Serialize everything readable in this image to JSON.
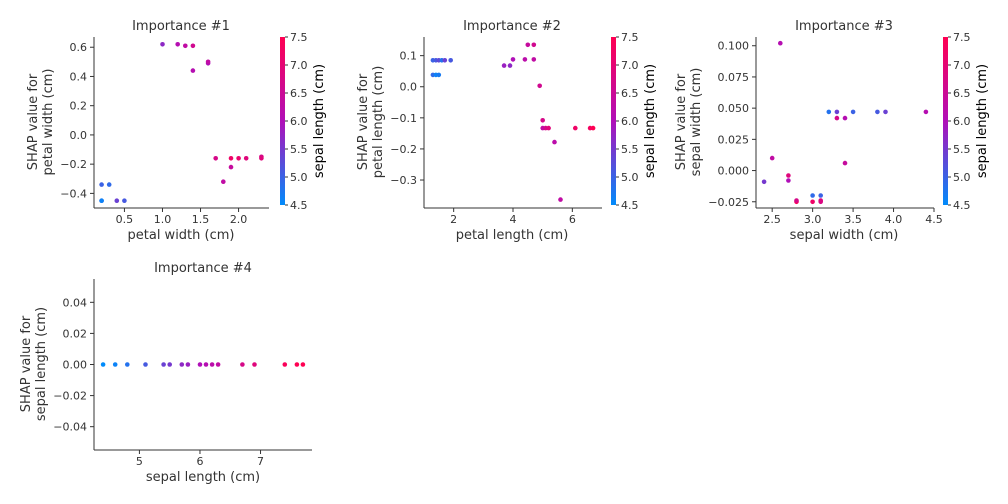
{
  "chart_data": [
    {
      "type": "scatter",
      "title": "Importance #1",
      "xlabel": "petal width (cm)",
      "ylabel_lines": [
        "SHAP value for",
        "petal width (cm)"
      ],
      "colorbar_label": "sepal length (cm)",
      "xlim": [
        0.1,
        2.4
      ],
      "ylim": [
        -0.5,
        0.67
      ],
      "xticks": [
        0.5,
        1.0,
        1.5,
        2.0
      ],
      "xtick_labels": [
        "0.5",
        "1.0",
        "1.5",
        "2.0"
      ],
      "yticks": [
        -0.4,
        -0.2,
        0.0,
        0.2,
        0.4,
        0.6
      ],
      "ytick_labels": [
        "−0.4",
        "−0.2",
        "0.0",
        "0.2",
        "0.4",
        "0.6"
      ],
      "points": [
        {
          "x": 0.2,
          "y": -0.34,
          "c": 5.0
        },
        {
          "x": 0.3,
          "y": -0.34,
          "c": 4.9
        },
        {
          "x": 0.2,
          "y": -0.45,
          "c": 5.1
        },
        {
          "x": 0.2,
          "y": -0.45,
          "c": 4.6
        },
        {
          "x": 0.4,
          "y": -0.45,
          "c": 5.4
        },
        {
          "x": 0.5,
          "y": -0.45,
          "c": 5.1
        },
        {
          "x": 1.0,
          "y": 0.62,
          "c": 5.7
        },
        {
          "x": 1.2,
          "y": 0.62,
          "c": 6.1
        },
        {
          "x": 1.3,
          "y": 0.61,
          "c": 6.3
        },
        {
          "x": 1.4,
          "y": 0.61,
          "c": 6.6
        },
        {
          "x": 1.4,
          "y": 0.44,
          "c": 6.1
        },
        {
          "x": 1.6,
          "y": 0.49,
          "c": 6.0
        },
        {
          "x": 1.6,
          "y": 0.5,
          "c": 6.3
        },
        {
          "x": 1.7,
          "y": -0.16,
          "c": 6.7
        },
        {
          "x": 1.8,
          "y": -0.32,
          "c": 6.3
        },
        {
          "x": 1.9,
          "y": -0.22,
          "c": 6.4
        },
        {
          "x": 1.9,
          "y": -0.16,
          "c": 7.2
        },
        {
          "x": 2.0,
          "y": -0.16,
          "c": 7.1
        },
        {
          "x": 2.1,
          "y": -0.16,
          "c": 6.9
        },
        {
          "x": 2.3,
          "y": -0.15,
          "c": 6.7
        },
        {
          "x": 2.3,
          "y": -0.16,
          "c": 6.9
        }
      ],
      "colorbar": {
        "min": 4.5,
        "max": 7.5,
        "ticks": [
          4.5,
          5.0,
          5.5,
          6.0,
          6.5,
          7.0,
          7.5
        ],
        "tick_labels": [
          "4.5",
          "5.0",
          "5.5",
          "6.0",
          "6.5",
          "7.0",
          "7.5"
        ]
      }
    },
    {
      "type": "scatter",
      "title": "Importance #2",
      "xlabel": "petal length (cm)",
      "ylabel_lines": [
        "SHAP value for",
        "petal length (cm)"
      ],
      "colorbar_label": "sepal length (cm)",
      "xlim": [
        1.0,
        7.0
      ],
      "ylim": [
        -0.39,
        0.16
      ],
      "xticks": [
        2,
        4,
        6
      ],
      "xtick_labels": [
        "2",
        "4",
        "6"
      ],
      "yticks": [
        0.1,
        0.0,
        -0.1,
        -0.2,
        -0.3
      ],
      "ytick_labels": [
        "0.1",
        "0.0",
        "−0.1",
        "−0.2",
        "−0.3"
      ],
      "points": [
        {
          "x": 1.3,
          "y": 0.085,
          "c": 5.0
        },
        {
          "x": 1.4,
          "y": 0.085,
          "c": 5.1
        },
        {
          "x": 1.5,
          "y": 0.085,
          "c": 5.3
        },
        {
          "x": 1.6,
          "y": 0.085,
          "c": 4.8
        },
        {
          "x": 1.7,
          "y": 0.085,
          "c": 5.4
        },
        {
          "x": 1.9,
          "y": 0.085,
          "c": 5.1
        },
        {
          "x": 1.3,
          "y": 0.038,
          "c": 4.9
        },
        {
          "x": 1.4,
          "y": 0.038,
          "c": 4.6
        },
        {
          "x": 1.5,
          "y": 0.038,
          "c": 4.7
        },
        {
          "x": 3.7,
          "y": 0.068,
          "c": 5.8
        },
        {
          "x": 3.9,
          "y": 0.068,
          "c": 5.7
        },
        {
          "x": 4.0,
          "y": 0.088,
          "c": 6.0
        },
        {
          "x": 4.4,
          "y": 0.088,
          "c": 6.2
        },
        {
          "x": 4.5,
          "y": 0.135,
          "c": 6.4
        },
        {
          "x": 4.7,
          "y": 0.135,
          "c": 6.6
        },
        {
          "x": 4.7,
          "y": 0.088,
          "c": 6.3
        },
        {
          "x": 4.9,
          "y": 0.003,
          "c": 6.6
        },
        {
          "x": 5.0,
          "y": -0.108,
          "c": 6.7
        },
        {
          "x": 5.0,
          "y": -0.133,
          "c": 6.3
        },
        {
          "x": 5.1,
          "y": -0.133,
          "c": 6.7
        },
        {
          "x": 5.2,
          "y": -0.133,
          "c": 6.9
        },
        {
          "x": 5.4,
          "y": -0.178,
          "c": 6.2
        },
        {
          "x": 5.6,
          "y": -0.363,
          "c": 6.3
        },
        {
          "x": 6.1,
          "y": -0.133,
          "c": 7.2
        },
        {
          "x": 6.6,
          "y": -0.133,
          "c": 7.3
        },
        {
          "x": 6.7,
          "y": -0.133,
          "c": 7.6
        }
      ],
      "colorbar": {
        "min": 4.5,
        "max": 7.5,
        "ticks": [
          4.5,
          5.0,
          5.5,
          6.0,
          6.5,
          7.0,
          7.5
        ],
        "tick_labels": [
          "4.5",
          "5.0",
          "5.5",
          "6.0",
          "6.5",
          "7.0",
          "7.5"
        ]
      }
    },
    {
      "type": "scatter",
      "title": "Importance #3",
      "xlabel": "sepal width (cm)",
      "ylabel_lines": [
        "SHAP value for",
        "sepal width (cm)"
      ],
      "colorbar_label": "sepal length (cm)",
      "xlim": [
        2.3,
        4.5
      ],
      "ylim": [
        -0.03,
        0.107
      ],
      "xticks": [
        2.5,
        3.0,
        3.5,
        4.0,
        4.5
      ],
      "xtick_labels": [
        "2.5",
        "3.0",
        "3.5",
        "4.0",
        "4.5"
      ],
      "yticks": [
        0.1,
        0.075,
        0.05,
        0.025,
        0.0,
        -0.025
      ],
      "ytick_labels": [
        "0.100",
        "0.075",
        "0.050",
        "0.025",
        "0.000",
        "−0.025"
      ],
      "points": [
        {
          "x": 2.4,
          "y": -0.009,
          "c": 5.5
        },
        {
          "x": 2.5,
          "y": 0.01,
          "c": 6.3
        },
        {
          "x": 2.6,
          "y": 0.102,
          "c": 6.1
        },
        {
          "x": 2.7,
          "y": -0.004,
          "c": 6.9
        },
        {
          "x": 2.7,
          "y": -0.008,
          "c": 6.0
        },
        {
          "x": 2.8,
          "y": -0.025,
          "c": 7.4
        },
        {
          "x": 2.8,
          "y": -0.024,
          "c": 6.7
        },
        {
          "x": 3.0,
          "y": -0.025,
          "c": 7.2
        },
        {
          "x": 3.0,
          "y": -0.02,
          "c": 4.9
        },
        {
          "x": 3.1,
          "y": -0.02,
          "c": 5.0
        },
        {
          "x": 3.1,
          "y": -0.024,
          "c": 6.9
        },
        {
          "x": 3.1,
          "y": -0.025,
          "c": 6.8
        },
        {
          "x": 3.2,
          "y": 0.047,
          "c": 4.8
        },
        {
          "x": 3.3,
          "y": 0.047,
          "c": 5.4
        },
        {
          "x": 3.3,
          "y": 0.042,
          "c": 6.7
        },
        {
          "x": 3.4,
          "y": 0.042,
          "c": 6.1
        },
        {
          "x": 3.4,
          "y": 0.006,
          "c": 6.4
        },
        {
          "x": 3.5,
          "y": 0.047,
          "c": 5.0
        },
        {
          "x": 3.8,
          "y": 0.047,
          "c": 5.1
        },
        {
          "x": 3.9,
          "y": 0.047,
          "c": 5.4
        },
        {
          "x": 4.4,
          "y": 0.047,
          "c": 6.1
        }
      ],
      "colorbar": {
        "min": 4.5,
        "max": 7.5,
        "ticks": [
          4.5,
          5.0,
          5.5,
          6.0,
          6.5,
          7.0,
          7.5
        ],
        "tick_labels": [
          "4.5",
          "5.0",
          "5.5",
          "6.0",
          "6.5",
          "7.0",
          "7.5"
        ]
      }
    },
    {
      "type": "scatter",
      "title": "Importance #4",
      "xlabel": "sepal length (cm)",
      "ylabel_lines": [
        "SHAP value for",
        "sepal length (cm)"
      ],
      "xlim": [
        4.25,
        7.85
      ],
      "ylim": [
        -0.055,
        0.055
      ],
      "xticks": [
        5,
        6,
        7
      ],
      "xtick_labels": [
        "5",
        "6",
        "7"
      ],
      "yticks": [
        0.04,
        0.02,
        0.0,
        -0.02,
        -0.04
      ],
      "ytick_labels": [
        "0.04",
        "0.02",
        "0.00",
        "−0.02",
        "−0.04"
      ],
      "points": [
        {
          "x": 4.4,
          "y": 0.0,
          "c": 4.4
        },
        {
          "x": 4.6,
          "y": 0.0,
          "c": 4.6
        },
        {
          "x": 4.8,
          "y": 0.0,
          "c": 4.8
        },
        {
          "x": 5.1,
          "y": 0.0,
          "c": 5.1
        },
        {
          "x": 5.4,
          "y": 0.0,
          "c": 5.4
        },
        {
          "x": 5.5,
          "y": 0.0,
          "c": 5.5
        },
        {
          "x": 5.7,
          "y": 0.0,
          "c": 5.7
        },
        {
          "x": 5.8,
          "y": 0.0,
          "c": 5.8
        },
        {
          "x": 6.0,
          "y": 0.0,
          "c": 6.0
        },
        {
          "x": 6.1,
          "y": 0.0,
          "c": 6.1
        },
        {
          "x": 6.2,
          "y": 0.0,
          "c": 6.2
        },
        {
          "x": 6.3,
          "y": 0.0,
          "c": 6.3
        },
        {
          "x": 6.7,
          "y": 0.0,
          "c": 6.7
        },
        {
          "x": 6.9,
          "y": 0.0,
          "c": 6.9
        },
        {
          "x": 7.4,
          "y": 0.0,
          "c": 7.4
        },
        {
          "x": 7.6,
          "y": 0.0,
          "c": 7.6
        },
        {
          "x": 7.7,
          "y": 0.0,
          "c": 7.7
        }
      ]
    }
  ],
  "colors": {
    "low": "#008bfb",
    "mid": "#b00fb8",
    "high": "#ff0052",
    "text": "#333333",
    "axis": "#333333"
  }
}
